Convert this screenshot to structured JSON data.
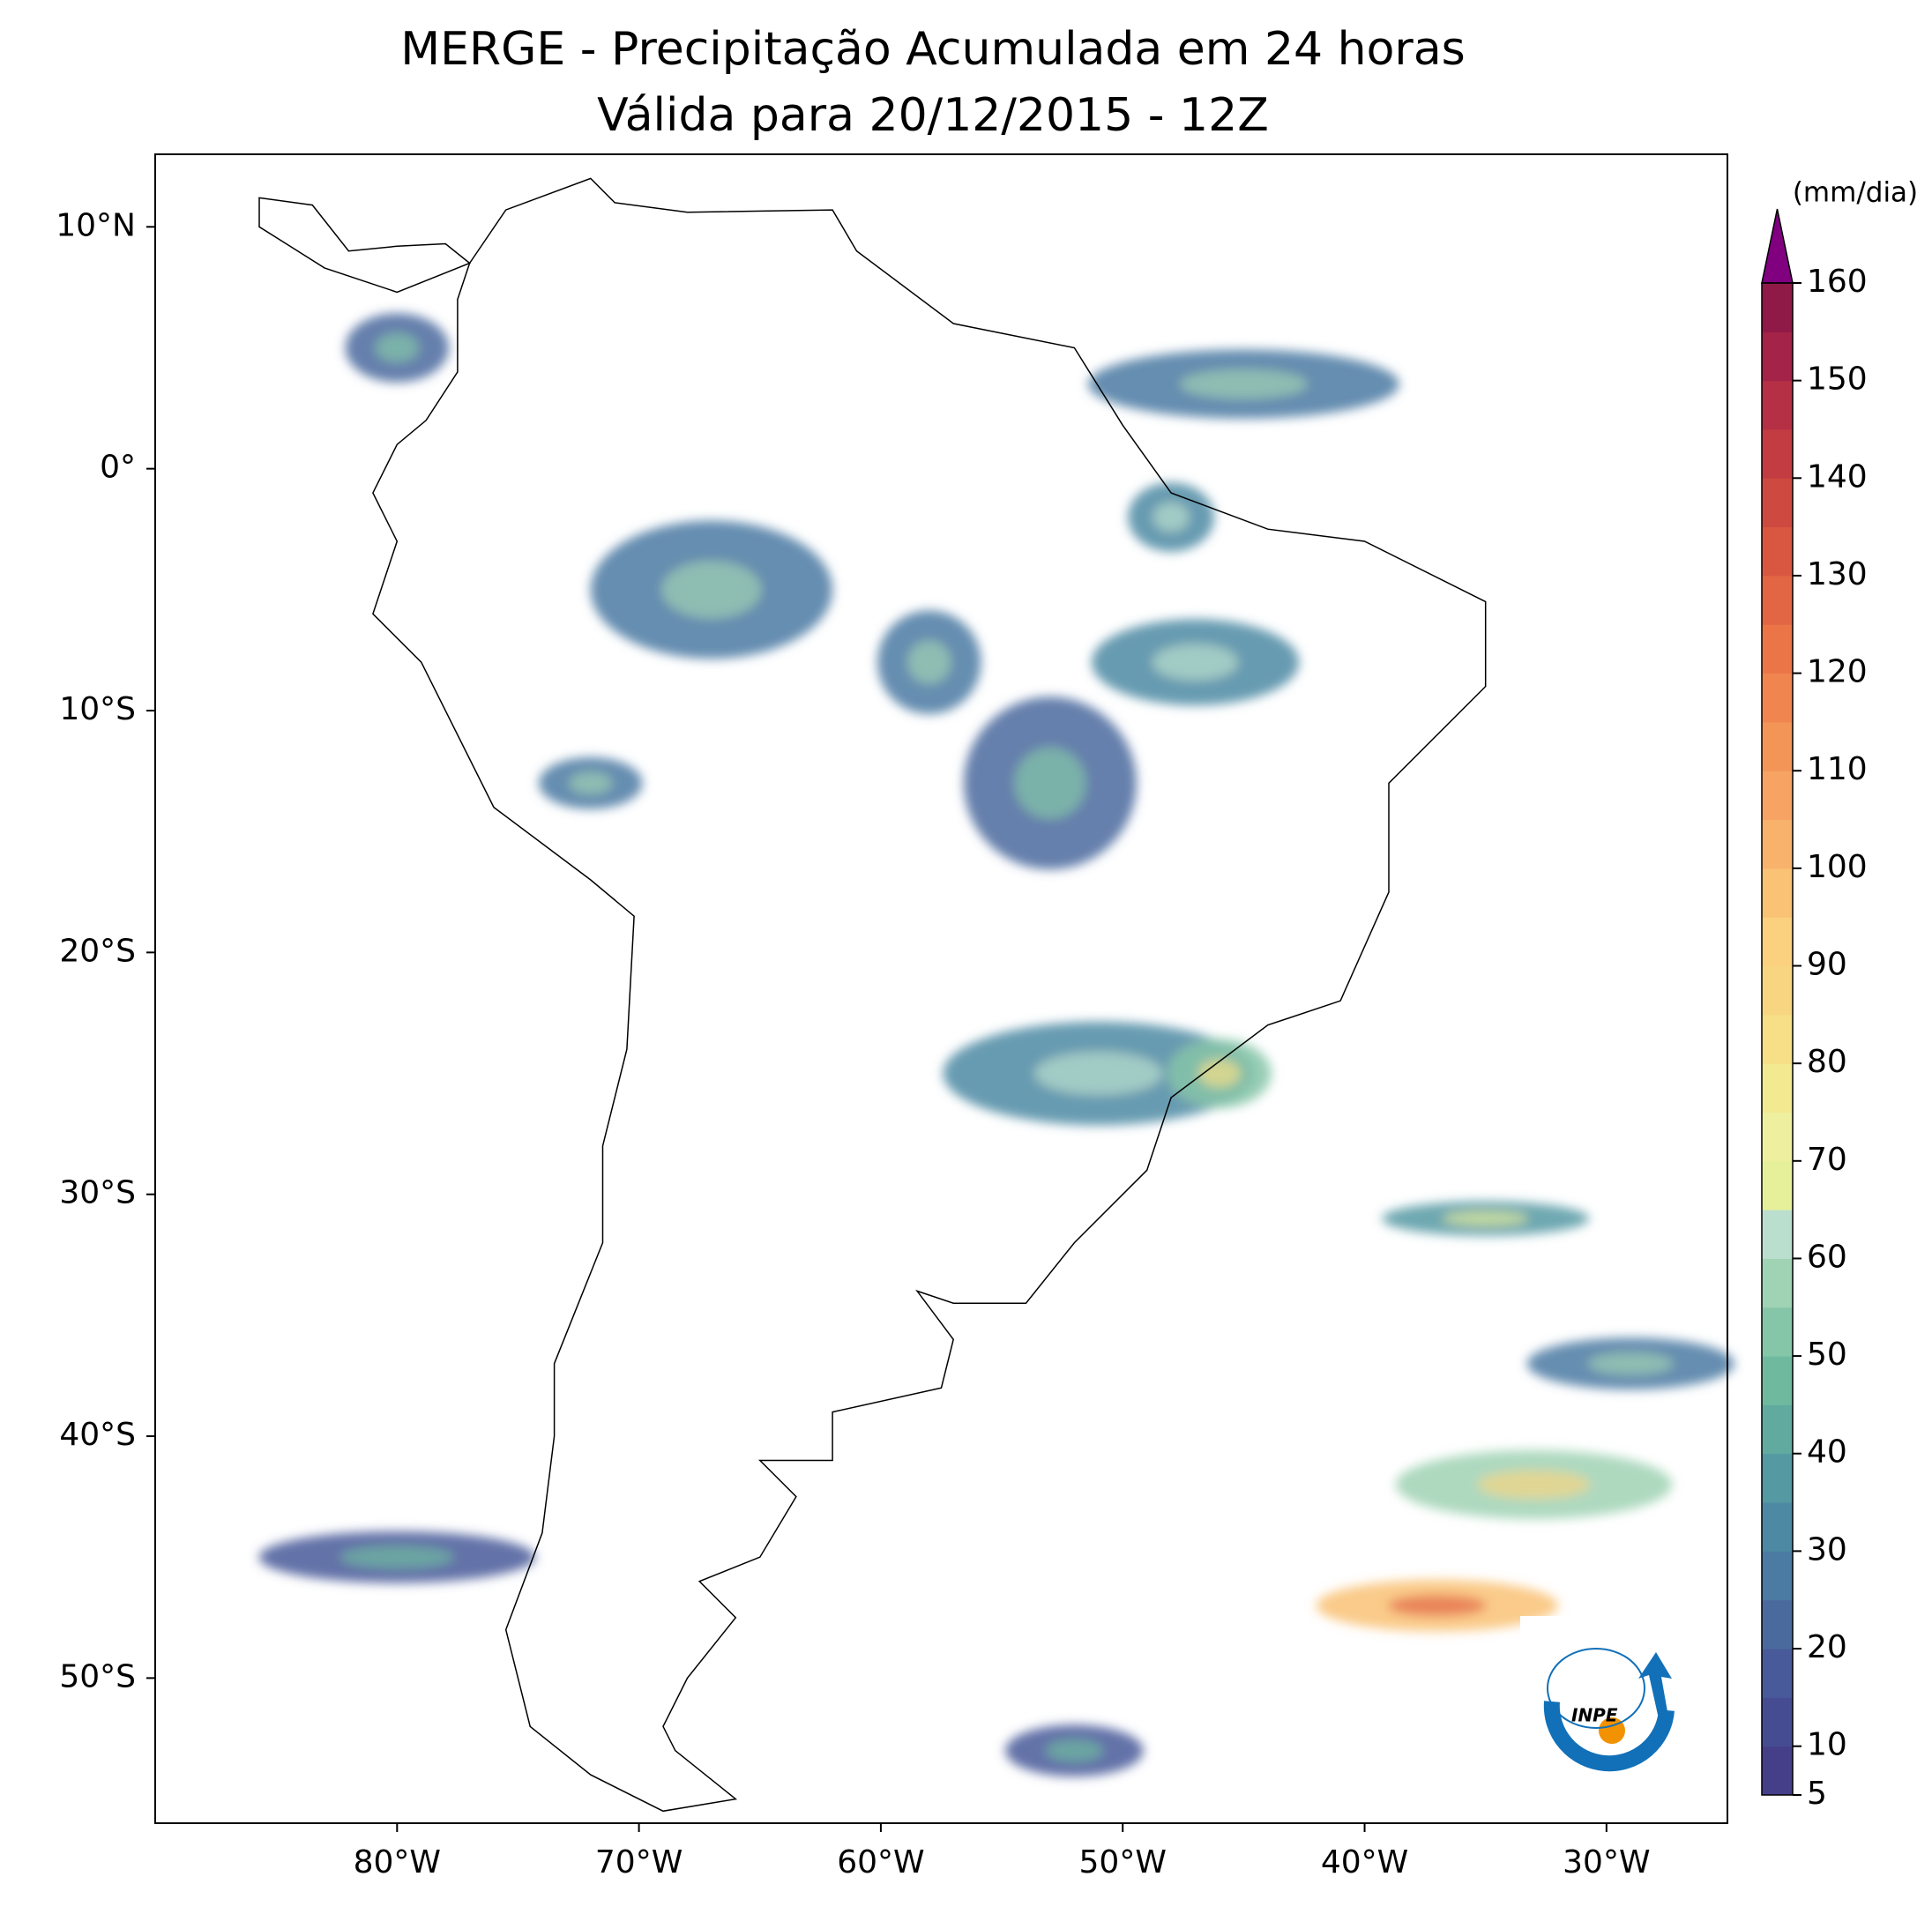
{
  "chart_data": {
    "type": "map",
    "title": "MERGE - Precipitação Acumulada em 24 horas",
    "subtitle": "Válida para 20/12/2015 - 12Z",
    "xlim": [
      -90,
      -25
    ],
    "ylim": [
      -56,
      13
    ],
    "xticks": [
      {
        "value": -80,
        "label": "80°W"
      },
      {
        "value": -70,
        "label": "70°W"
      },
      {
        "value": -60,
        "label": "60°W"
      },
      {
        "value": -50,
        "label": "50°W"
      },
      {
        "value": -40,
        "label": "40°W"
      },
      {
        "value": -30,
        "label": "30°W"
      }
    ],
    "yticks": [
      {
        "value": 10,
        "label": "10°N"
      },
      {
        "value": 0,
        "label": "0°"
      },
      {
        "value": -10,
        "label": "10°S"
      },
      {
        "value": -20,
        "label": "20°S"
      },
      {
        "value": -30,
        "label": "30°S"
      },
      {
        "value": -40,
        "label": "40°S"
      },
      {
        "value": -50,
        "label": "50°S"
      }
    ],
    "colorbar": {
      "label": "(mm/dia)",
      "clim": [
        5,
        160
      ],
      "extend_color": "#800080",
      "ticks": [
        5,
        10,
        20,
        30,
        40,
        50,
        60,
        70,
        80,
        90,
        100,
        110,
        120,
        130,
        140,
        150,
        160
      ],
      "colors": [
        "#453f8a",
        "#464c92",
        "#485a99",
        "#4a6a9e",
        "#4b7aa2",
        "#4d89a3",
        "#5599a3",
        "#60aaa0",
        "#6fba9f",
        "#86c6a8",
        "#a0d2b4",
        "#bbdfcf",
        "#e6f09a",
        "#eef0a0",
        "#f3e990",
        "#f6df87",
        "#f8d681",
        "#fbd07e",
        "#f9c275",
        "#f8b26b",
        "#f6a363",
        "#f49558",
        "#f1854f",
        "#ec7548",
        "#e36644",
        "#d95741",
        "#ce4a40",
        "#c33c42",
        "#b52f45",
        "#a32349",
        "#8f1a48"
      ]
    },
    "logo": {
      "text": "INPE"
    }
  }
}
